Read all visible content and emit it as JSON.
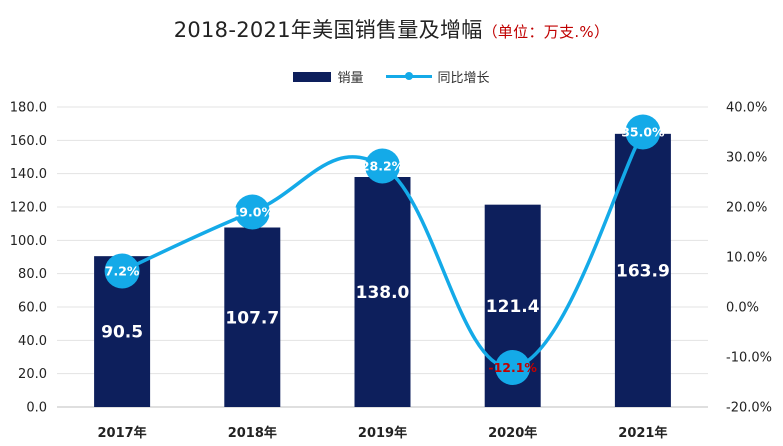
{
  "title": {
    "main": "2018-2021年美国销售量及增幅",
    "sub": "（单位：万支.%）"
  },
  "legend": {
    "bar_label": "销量",
    "line_label": "同比增长"
  },
  "colors": {
    "bar": "#0d1f5c",
    "line": "#14aae8",
    "negative_label": "#c00000",
    "grid": "#e3e3e3"
  },
  "chart_data": {
    "type": "bar",
    "categories": [
      "2017年",
      "2018年",
      "2019年",
      "2020年",
      "2021年"
    ],
    "series": [
      {
        "name": "销量",
        "type": "bar",
        "axis": "left",
        "values": [
          90.5,
          107.7,
          138.0,
          121.4,
          163.9
        ],
        "labels": [
          "90.5",
          "107.7",
          "138.0",
          "121.4",
          "163.9"
        ]
      },
      {
        "name": "同比增长",
        "type": "line",
        "axis": "right",
        "smooth": true,
        "values": [
          7.2,
          19.0,
          28.2,
          -12.1,
          35.0
        ],
        "labels": [
          "7.2%",
          "19.0%",
          "28.2%",
          "-12.1%",
          "35.0%"
        ]
      }
    ],
    "y_left": {
      "min": 0,
      "max": 180,
      "step": 20,
      "ticks": [
        "0.0",
        "20.0",
        "40.0",
        "60.0",
        "80.0",
        "100.0",
        "120.0",
        "140.0",
        "160.0",
        "180.0"
      ]
    },
    "y_right": {
      "min": -20,
      "max": 40,
      "step": 10,
      "ticks": [
        "-20.0%",
        "-10.0%",
        "0.0%",
        "10.0%",
        "20.0%",
        "30.0%",
        "40.0%"
      ]
    },
    "grid": true,
    "legend_position": "top"
  }
}
